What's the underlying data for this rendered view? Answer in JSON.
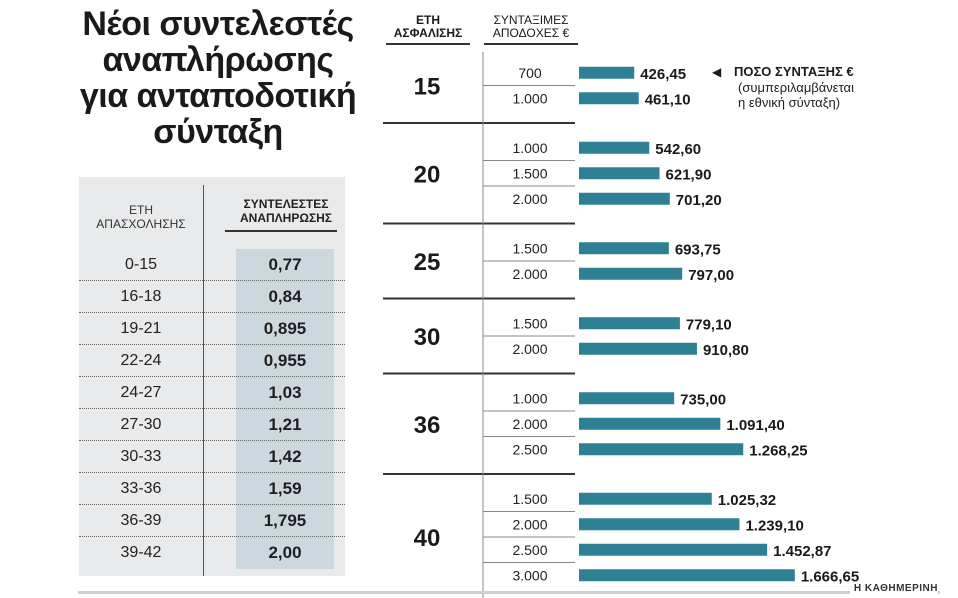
{
  "title_lines": [
    "Νέοι συντελεστές",
    "αναπλήρωσης",
    "για ανταποδοτική",
    "σύνταξη"
  ],
  "left_table": {
    "header_left": [
      "ΕΤΗ",
      "ΑΠΑΣΧΟΛΗΣΗΣ"
    ],
    "header_right": [
      "ΣΥΝΤΕΛΕΣΤΕΣ",
      "ΑΝΑΠΛΗΡΩΣΗΣ"
    ],
    "rows": [
      {
        "range": "0-15",
        "value": "0,77"
      },
      {
        "range": "16-18",
        "value": "0,84"
      },
      {
        "range": "19-21",
        "value": "0,895"
      },
      {
        "range": "22-24",
        "value": "0,955"
      },
      {
        "range": "24-27",
        "value": "1,03"
      },
      {
        "range": "27-30",
        "value": "1,21"
      },
      {
        "range": "30-33",
        "value": "1,42"
      },
      {
        "range": "33-36",
        "value": "1,59"
      },
      {
        "range": "36-39",
        "value": "1,795"
      },
      {
        "range": "39-42",
        "value": "2,00"
      }
    ]
  },
  "right_headers": {
    "years": [
      "ΕΤΗ",
      "ΑΣΦΑΛΙΣΗΣ"
    ],
    "earnings": [
      "ΣΥΝΤΑΞΙΜΕΣ",
      "ΑΠΟΔΟΧΕΣ €"
    ]
  },
  "note": {
    "title": "ΠΟΣΟ ΣΥΝΤΑΞΗΣ €",
    "line2": "(συμπεριλαμβάνεται",
    "line3": "η εθνική σύνταξη)"
  },
  "footer": "Η ΚΑΘΗΜΕΡΙΝΗ",
  "colors": {
    "bar": "#2e8094",
    "table_bg": "#e9eaeb",
    "value_cell": "#cdd7de"
  },
  "chart_data": {
    "type": "bar",
    "orientation": "horizontal",
    "groups": [
      {
        "years": "15",
        "rows": [
          {
            "earnings": "700",
            "pension": 426.45,
            "label": "426,45"
          },
          {
            "earnings": "1.000",
            "pension": 461.1,
            "label": "461,10"
          }
        ]
      },
      {
        "years": "20",
        "rows": [
          {
            "earnings": "1.000",
            "pension": 542.6,
            "label": "542,60"
          },
          {
            "earnings": "1.500",
            "pension": 621.9,
            "label": "621,90"
          },
          {
            "earnings": "2.000",
            "pension": 701.2,
            "label": "701,20"
          }
        ]
      },
      {
        "years": "25",
        "rows": [
          {
            "earnings": "1.500",
            "pension": 693.75,
            "label": "693,75"
          },
          {
            "earnings": "2.000",
            "pension": 797.0,
            "label": "797,00"
          }
        ]
      },
      {
        "years": "30",
        "rows": [
          {
            "earnings": "1.500",
            "pension": 779.1,
            "label": "779,10"
          },
          {
            "earnings": "2.000",
            "pension": 910.8,
            "label": "910,80"
          }
        ]
      },
      {
        "years": "36",
        "rows": [
          {
            "earnings": "1.000",
            "pension": 735.0,
            "label": "735,00"
          },
          {
            "earnings": "2.000",
            "pension": 1091.4,
            "label": "1.091,40"
          },
          {
            "earnings": "2.500",
            "pension": 1268.25,
            "label": "1.268,25"
          }
        ]
      },
      {
        "years": "40",
        "rows": [
          {
            "earnings": "1.500",
            "pension": 1025.32,
            "label": "1.025,32"
          },
          {
            "earnings": "2.000",
            "pension": 1239.1,
            "label": "1.239,10"
          },
          {
            "earnings": "2.500",
            "pension": 1452.87,
            "label": "1.452,87"
          },
          {
            "earnings": "3.000",
            "pension": 1666.65,
            "label": "1.666,65"
          }
        ]
      }
    ]
  }
}
